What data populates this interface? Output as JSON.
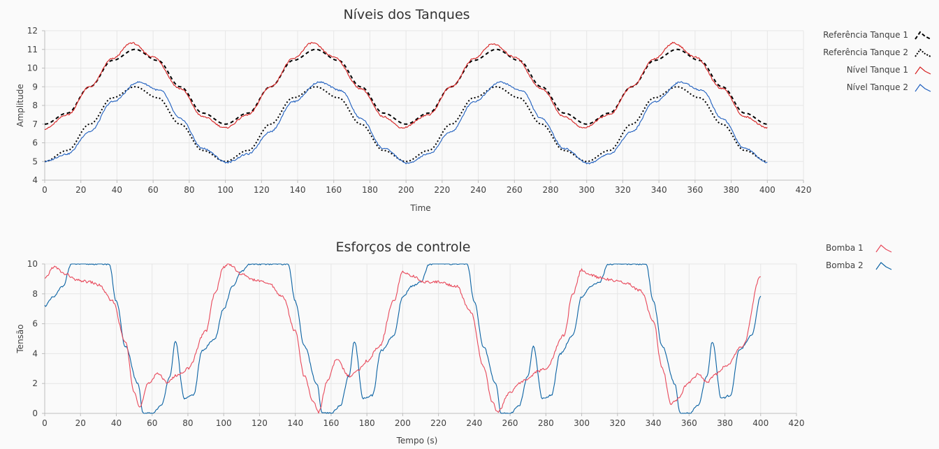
{
  "colors": {
    "ref1": "#000000",
    "ref2": "#000000",
    "nivel1": "#d62020",
    "nivel2": "#1f5fbf",
    "bomba1": "#e8485a",
    "bomba2": "#0a62a3",
    "grid": "#e6e6e6"
  },
  "chart_data": [
    {
      "type": "line",
      "title": "Níveis dos Tanques",
      "xlabel": "Time",
      "ylabel": "Amplitude",
      "xlim": [
        0,
        420
      ],
      "ylim": [
        4,
        12
      ],
      "xticks": [
        "0",
        "20",
        "40",
        "60",
        "80",
        "100",
        "120",
        "140",
        "160",
        "180",
        "200",
        "220",
        "240",
        "260",
        "280",
        "300",
        "320",
        "340",
        "360",
        "380",
        "400",
        "420"
      ],
      "yticks": [
        "4",
        "5",
        "6",
        "7",
        "8",
        "9",
        "10",
        "11",
        "12"
      ],
      "grid": true,
      "legend_position": "right",
      "series": [
        {
          "name": "Referência Tanque 1",
          "style": "dashed",
          "x": [
            0,
            12.5,
            25,
            37.5,
            50,
            62.5,
            75,
            87.5,
            100,
            112.5,
            125,
            137.5,
            150,
            162.5,
            175,
            187.5,
            200,
            212.5,
            225,
            237.5,
            250,
            262.5,
            275,
            287.5,
            300,
            312.5,
            325,
            337.5,
            350,
            362.5,
            375,
            387.5,
            400
          ],
          "y": [
            7,
            7.59,
            9,
            10.41,
            11,
            10.41,
            9,
            7.59,
            7,
            7.59,
            9,
            10.41,
            11,
            10.41,
            9,
            7.59,
            7,
            7.59,
            9,
            10.41,
            11,
            10.41,
            9,
            7.59,
            7,
            7.59,
            9,
            10.41,
            11,
            10.41,
            9,
            7.59,
            7
          ]
        },
        {
          "name": "Referência Tanque 2",
          "style": "dotted",
          "x": [
            0,
            12.5,
            25,
            37.5,
            50,
            62.5,
            75,
            87.5,
            100,
            112.5,
            125,
            137.5,
            150,
            162.5,
            175,
            187.5,
            200,
            212.5,
            225,
            237.5,
            250,
            262.5,
            275,
            287.5,
            300,
            312.5,
            325,
            337.5,
            350,
            362.5,
            375,
            387.5,
            400
          ],
          "y": [
            5,
            5.59,
            7,
            8.41,
            9,
            8.41,
            7,
            5.59,
            5,
            5.59,
            7,
            8.41,
            9,
            8.41,
            7,
            5.59,
            5,
            5.59,
            7,
            8.41,
            9,
            8.41,
            7,
            5.59,
            5,
            5.59,
            7,
            8.41,
            9,
            8.41,
            7,
            5.59,
            5
          ]
        },
        {
          "name": "Nível Tanque 1",
          "style": "solid",
          "x": [
            0,
            12.5,
            25,
            37.5,
            48,
            60,
            75,
            87.5,
            100,
            112.5,
            125,
            137.5,
            148,
            160,
            175,
            187.5,
            198,
            212.5,
            225,
            237.5,
            248,
            260,
            275,
            287.5,
            298,
            312.5,
            325,
            337.5,
            348,
            360,
            375,
            387.5,
            400
          ],
          "y": [
            6.75,
            7.5,
            9,
            10.5,
            11.35,
            10.6,
            8.9,
            7.4,
            6.8,
            7.5,
            9,
            10.5,
            11.35,
            10.6,
            8.9,
            7.4,
            6.8,
            7.5,
            9,
            10.5,
            11.3,
            10.6,
            8.9,
            7.4,
            6.8,
            7.5,
            9,
            10.5,
            11.35,
            10.6,
            8.9,
            7.4,
            6.8
          ]
        },
        {
          "name": "Nível Tanque 2",
          "style": "solid",
          "x": [
            0,
            12.5,
            25,
            37.5,
            52,
            64,
            75,
            87.5,
            101,
            112.5,
            125,
            137.5,
            152,
            164,
            175,
            187.5,
            201,
            212.5,
            225,
            237.5,
            252,
            264,
            275,
            287.5,
            301,
            312.5,
            325,
            337.5,
            352,
            364,
            375,
            387.5,
            400
          ],
          "y": [
            5,
            5.4,
            6.6,
            8.2,
            9.25,
            8.8,
            7.3,
            5.7,
            4.95,
            5.4,
            6.6,
            8.2,
            9.25,
            8.8,
            7.3,
            5.7,
            4.9,
            5.4,
            6.6,
            8.2,
            9.25,
            8.8,
            7.3,
            5.7,
            4.9,
            5.4,
            6.6,
            8.2,
            9.25,
            8.8,
            7.3,
            5.7,
            4.95
          ]
        }
      ]
    },
    {
      "type": "line",
      "title": "Esforços de controle",
      "xlabel": "Tempo (s)",
      "ylabel": "Tensão",
      "xlim": [
        0,
        420
      ],
      "ylim": [
        0,
        10
      ],
      "xticks": [
        "0",
        "20",
        "40",
        "60",
        "80",
        "100",
        "120",
        "140",
        "160",
        "180",
        "200",
        "220",
        "240",
        "260",
        "280",
        "300",
        "320",
        "340",
        "360",
        "380",
        "400",
        "420"
      ],
      "yticks": [
        "0",
        "2",
        "4",
        "6",
        "8",
        "10"
      ],
      "grid": true,
      "legend_position": "right",
      "series": [
        {
          "name": "Bomba 1",
          "x": [
            0,
            5,
            12,
            18,
            25,
            30,
            38,
            45,
            50,
            53,
            58,
            63,
            68,
            75,
            80,
            90,
            95,
            100,
            103,
            110,
            118,
            125,
            133,
            140,
            145,
            150,
            153,
            158,
            163,
            170,
            175,
            180,
            187,
            195,
            200,
            205,
            212,
            220,
            230,
            238,
            245,
            250,
            253,
            260,
            265,
            270,
            275,
            280,
            290,
            295,
            300,
            303,
            310,
            318,
            325,
            333,
            340,
            345,
            350,
            353,
            360,
            365,
            370,
            375,
            380,
            390,
            400
          ],
          "x_note": "",
          "y": [
            9,
            9.8,
            9.3,
            8.9,
            8.8,
            8.6,
            7.5,
            4.8,
            1.5,
            0.4,
            2,
            2.7,
            2.1,
            2.6,
            3,
            5.5,
            8,
            9.8,
            10,
            9.3,
            8.9,
            8.7,
            7.8,
            5.5,
            2.5,
            0.8,
            0.1,
            2.2,
            3.6,
            2.5,
            2.9,
            3.5,
            4.5,
            7.5,
            9.5,
            9.2,
            8.8,
            8.8,
            8.5,
            6.8,
            3.2,
            0.8,
            0.1,
            1.4,
            2,
            2.3,
            2.8,
            3,
            5.2,
            8,
            9.6,
            9.3,
            9.1,
            8.9,
            8.7,
            8.2,
            6.2,
            3,
            0.6,
            0.9,
            2.1,
            2.6,
            2.1,
            2.6,
            3.1,
            4.5,
            9.2
          ]
        },
        {
          "name": "Bomba 2",
          "x": [
            0,
            5,
            10,
            15,
            25,
            36,
            40,
            45,
            52,
            55,
            60,
            65,
            70,
            73,
            78,
            83,
            88,
            95,
            100,
            105,
            110,
            115,
            125,
            136,
            140,
            145,
            152,
            155,
            160,
            165,
            170,
            173,
            178,
            183,
            188,
            195,
            200,
            205,
            210,
            215,
            225,
            236,
            240,
            245,
            252,
            255,
            260,
            265,
            270,
            273,
            278,
            283,
            288,
            295,
            300,
            305,
            310,
            315,
            325,
            336,
            340,
            345,
            352,
            355,
            360,
            365,
            370,
            373,
            378,
            383,
            388,
            395,
            400
          ],
          "y": [
            7.2,
            7.8,
            8.5,
            10,
            10,
            10,
            7.5,
            4.5,
            2,
            0,
            0,
            0.5,
            2.5,
            4.8,
            1,
            1.2,
            4.2,
            5,
            7,
            8.5,
            9.5,
            10,
            10,
            10,
            7.5,
            4.5,
            2,
            0,
            0,
            0.5,
            2.5,
            4.8,
            1,
            1.2,
            4.2,
            5.2,
            7.8,
            8.5,
            8.8,
            10,
            10,
            10,
            7.5,
            4.5,
            2,
            0,
            0,
            0.5,
            2.5,
            4.5,
            1,
            1.2,
            4,
            5.2,
            7.8,
            8.5,
            8.8,
            10,
            10,
            10,
            7.5,
            4.5,
            2,
            0,
            0,
            0.5,
            2.5,
            4.8,
            1,
            1.2,
            4.2,
            5.2,
            7.8
          ]
        }
      ]
    }
  ]
}
